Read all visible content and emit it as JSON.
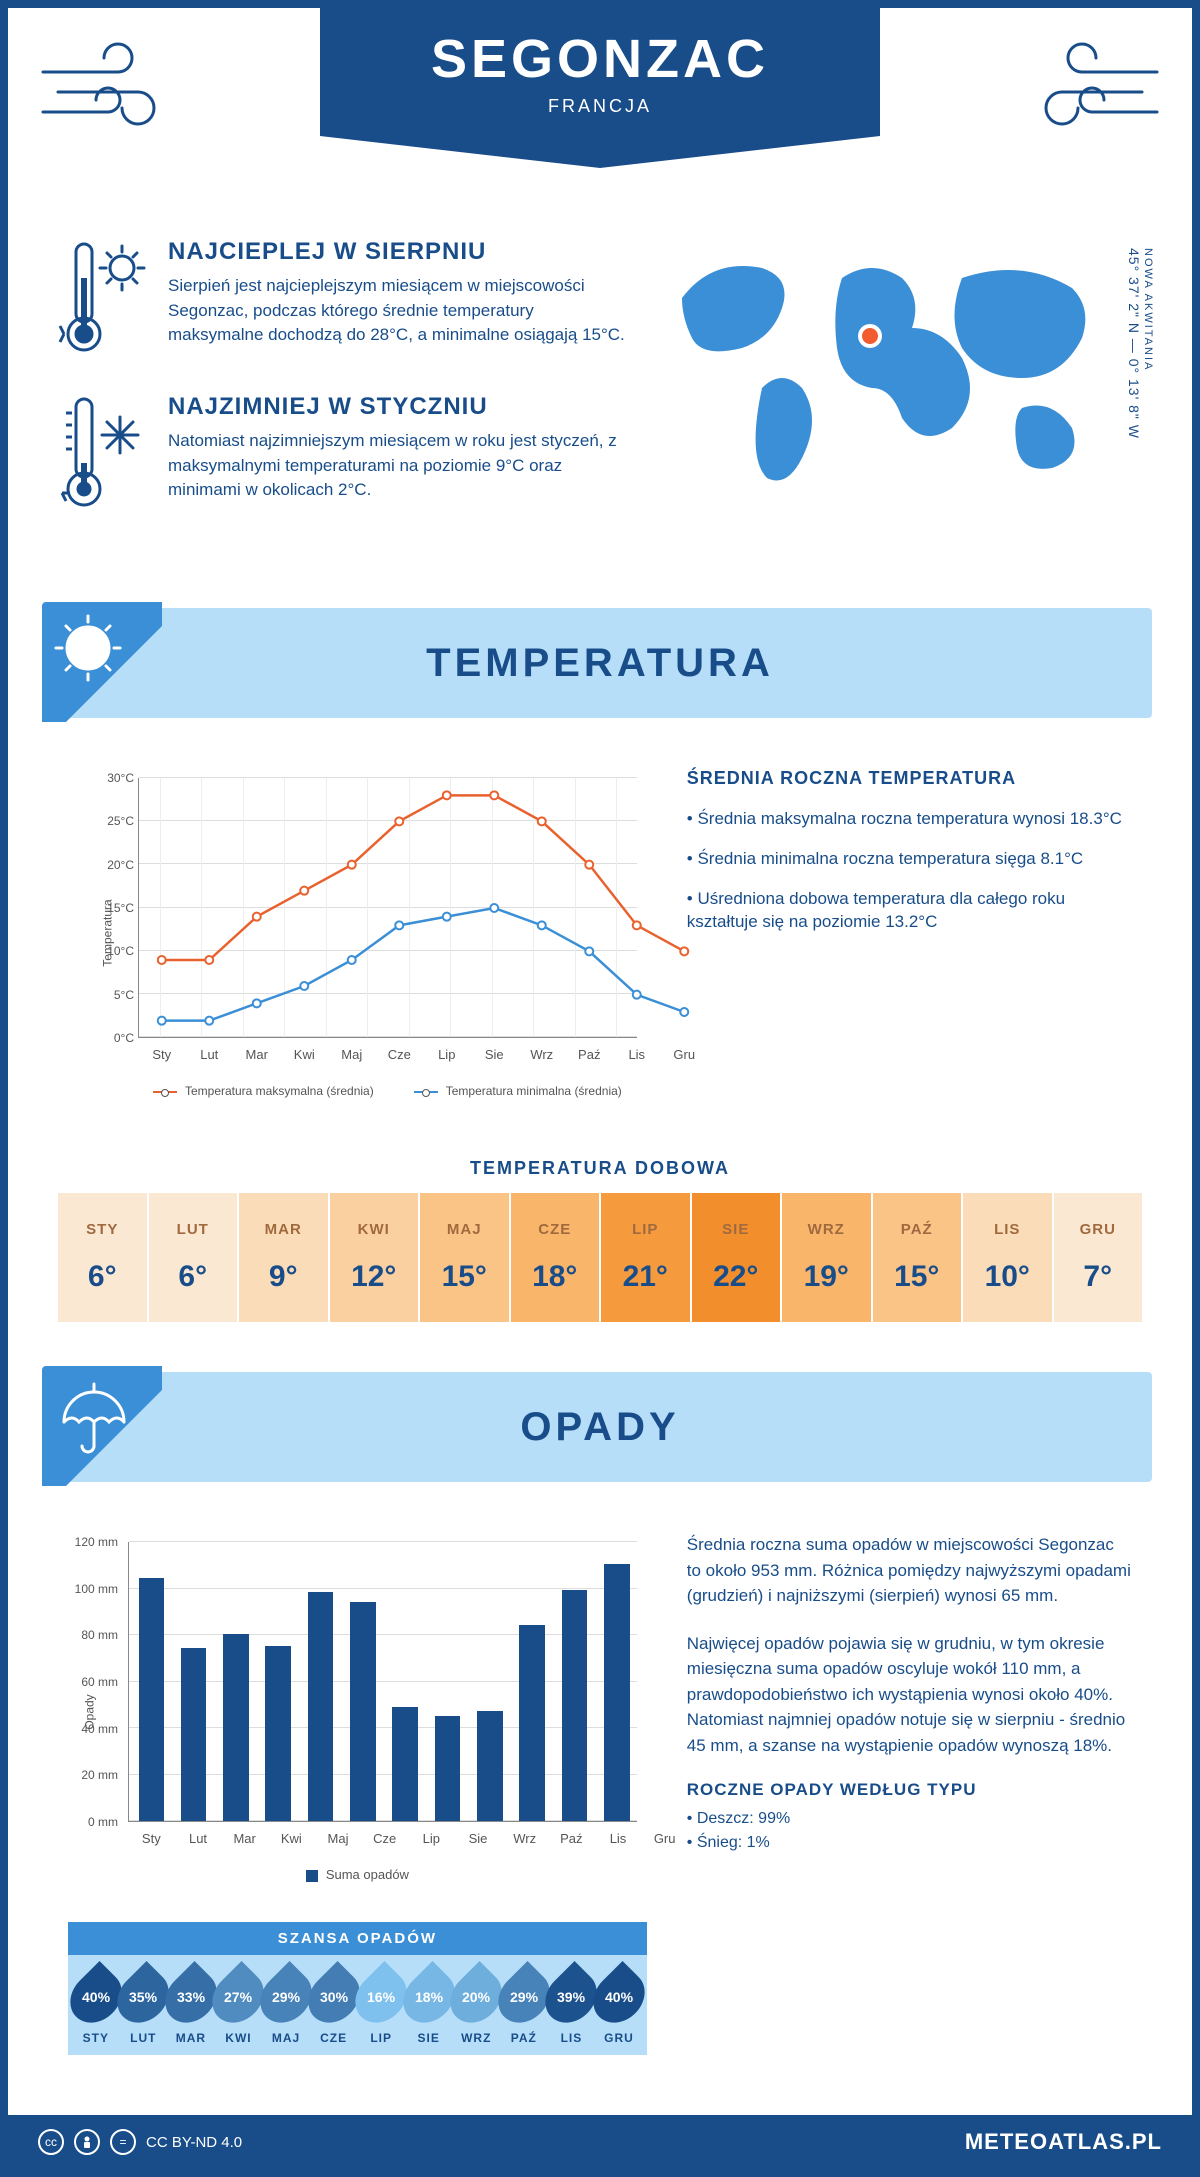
{
  "header": {
    "city": "SEGONZAC",
    "country": "FRANCJA"
  },
  "location": {
    "coords": "45° 37' 2\" N — 0° 13' 8\" W",
    "region": "NOWA AKWITANIA",
    "marker_color": "#f25c2e",
    "map_color": "#3b8fd6"
  },
  "facts": {
    "warmest": {
      "title": "NAJCIEPLEJ W SIERPNIU",
      "text": "Sierpień jest najcieplejszym miesiącem w miejscowości Segonzac, podczas którego średnie temperatury maksymalne dochodzą do 28°C, a minimalne osiągają 15°C."
    },
    "coldest": {
      "title": "NAJZIMNIEJ W STYCZNIU",
      "text": "Natomiast najzimniejszym miesiącem w roku jest styczeń, z maksymalnymi temperaturami na poziomie 9°C oraz minimami w okolicach 2°C."
    }
  },
  "sections": {
    "temperature": "TEMPERATURA",
    "precipitation": "OPADY"
  },
  "temperature_chart": {
    "type": "line",
    "ylabel": "Temperatura",
    "ylim": [
      0,
      30
    ],
    "ytick_step": 5,
    "ytick_suffix": "°C",
    "grid_color": "#dddddd",
    "months": [
      "Sty",
      "Lut",
      "Mar",
      "Kwi",
      "Maj",
      "Cze",
      "Lip",
      "Sie",
      "Wrz",
      "Paź",
      "Lis",
      "Gru"
    ],
    "series": {
      "max": {
        "label": "Temperatura maksymalna (średnia)",
        "color": "#e8622f",
        "values": [
          9,
          9,
          14,
          17,
          20,
          25,
          28,
          28,
          25,
          20,
          13,
          10
        ]
      },
      "min": {
        "label": "Temperatura minimalna (średnia)",
        "color": "#3b8fd6",
        "values": [
          2,
          2,
          4,
          6,
          9,
          13,
          14,
          15,
          13,
          10,
          5,
          3
        ]
      }
    }
  },
  "annual_temp": {
    "title": "ŚREDNIA ROCZNA TEMPERATURA",
    "bullets": [
      "Średnia maksymalna roczna temperatura wynosi 18.3°C",
      "Średnia minimalna roczna temperatura sięga 8.1°C",
      "Uśredniona dobowa temperatura dla całego roku kształtuje się na poziomie 13.2°C"
    ]
  },
  "daily": {
    "title": "TEMPERATURA DOBOWA",
    "months": [
      "STY",
      "LUT",
      "MAR",
      "KWI",
      "MAJ",
      "CZE",
      "LIP",
      "SIE",
      "WRZ",
      "PAŹ",
      "LIS",
      "GRU"
    ],
    "values": [
      6,
      6,
      9,
      12,
      15,
      18,
      21,
      22,
      19,
      15,
      10,
      7
    ],
    "unit": "°",
    "colors": [
      "#fbe8d2",
      "#fbe8d2",
      "#fbdcb9",
      "#fbd0a0",
      "#fbc487",
      "#f9b56a",
      "#f59b3e",
      "#f28f2c",
      "#f9b56a",
      "#fbc487",
      "#fbdcb9",
      "#fbe8d2"
    ]
  },
  "precip_chart": {
    "type": "bar",
    "ylabel": "Opady",
    "ylim": [
      0,
      120
    ],
    "ytick_step": 20,
    "ytick_suffix": " mm",
    "months": [
      "Sty",
      "Lut",
      "Mar",
      "Kwi",
      "Maj",
      "Cze",
      "Lip",
      "Sie",
      "Wrz",
      "Paź",
      "Lis",
      "Gru"
    ],
    "values": [
      104,
      74,
      80,
      75,
      98,
      94,
      49,
      45,
      47,
      84,
      99,
      110
    ],
    "bar_color": "#184d8a",
    "legend": "Suma opadów"
  },
  "precip_text": {
    "p1": "Średnia roczna suma opadów w miejscowości Segonzac to około 953 mm. Różnica pomiędzy najwyższymi opadami (grudzień) i najniższymi (sierpień) wynosi 65 mm.",
    "p2": "Najwięcej opadów pojawia się w grudniu, w tym okresie miesięczna suma opadów oscyluje wokół 110 mm, a prawdopodobieństwo ich wystąpienia wynosi około 40%. Natomiast najmniej opadów notuje się w sierpniu - średnio 45 mm, a szanse na wystąpienie opadów wynoszą 18%.",
    "by_type_title": "ROCZNE OPADY WEDŁUG TYPU",
    "by_type": [
      "Deszcz: 99%",
      "Śnieg: 1%"
    ]
  },
  "chance": {
    "title": "SZANSA OPADÓW",
    "months": [
      "STY",
      "LUT",
      "MAR",
      "KWI",
      "MAJ",
      "CZE",
      "LIP",
      "SIE",
      "WRZ",
      "PAŹ",
      "LIS",
      "GRU"
    ],
    "values": [
      40,
      35,
      33,
      27,
      29,
      30,
      16,
      18,
      20,
      29,
      39,
      40
    ],
    "color_scale": {
      "min": "#7fc1ee",
      "max": "#184d8a"
    }
  },
  "footer": {
    "license": "CC BY-ND 4.0",
    "site": "METEOATLAS.PL"
  }
}
